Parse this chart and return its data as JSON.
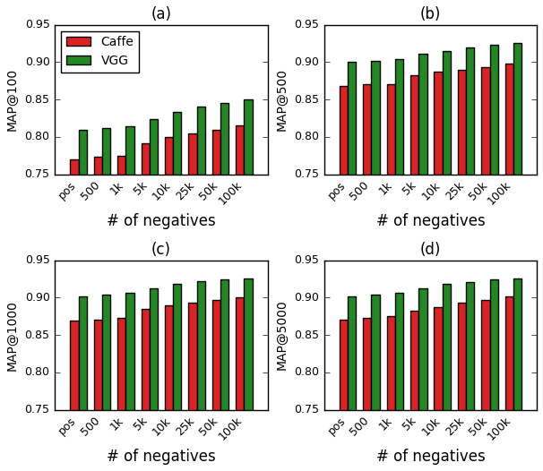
{
  "categories": [
    "pos",
    "500",
    "1k",
    "5k",
    "10k",
    "25k",
    "50k",
    "100k"
  ],
  "subplots": [
    {
      "title": "(a)",
      "ylabel": "MAP@100",
      "caffe": [
        0.77,
        0.773,
        0.775,
        0.792,
        0.8,
        0.805,
        0.81,
        0.815
      ],
      "vgg": [
        0.81,
        0.812,
        0.814,
        0.824,
        0.833,
        0.84,
        0.845,
        0.85
      ]
    },
    {
      "title": "(b)",
      "ylabel": "MAP@500",
      "caffe": [
        0.868,
        0.87,
        0.871,
        0.882,
        0.887,
        0.89,
        0.893,
        0.898
      ],
      "vgg": [
        0.901,
        0.902,
        0.904,
        0.911,
        0.915,
        0.92,
        0.923,
        0.925
      ]
    },
    {
      "title": "(c)",
      "ylabel": "MAP@1000",
      "caffe": [
        0.869,
        0.871,
        0.873,
        0.885,
        0.89,
        0.893,
        0.897,
        0.901
      ],
      "vgg": [
        0.902,
        0.904,
        0.907,
        0.913,
        0.918,
        0.922,
        0.924,
        0.926
      ]
    },
    {
      "title": "(d)",
      "ylabel": "MAP@5000",
      "caffe": [
        0.87,
        0.873,
        0.875,
        0.882,
        0.887,
        0.893,
        0.897,
        0.902
      ],
      "vgg": [
        0.902,
        0.904,
        0.907,
        0.913,
        0.918,
        0.921,
        0.924,
        0.926
      ]
    }
  ],
  "xlabel": "# of negatives",
  "ylim": [
    0.75,
    0.95
  ],
  "yticks": [
    0.75,
    0.8,
    0.85,
    0.9,
    0.95
  ],
  "caffe_color": "#dd2222",
  "vgg_color": "#228822",
  "bar_width": 0.35,
  "legend_labels": [
    "Caffe",
    "VGG"
  ],
  "fig_width": 6.06,
  "fig_height": 5.26,
  "dpi": 100
}
